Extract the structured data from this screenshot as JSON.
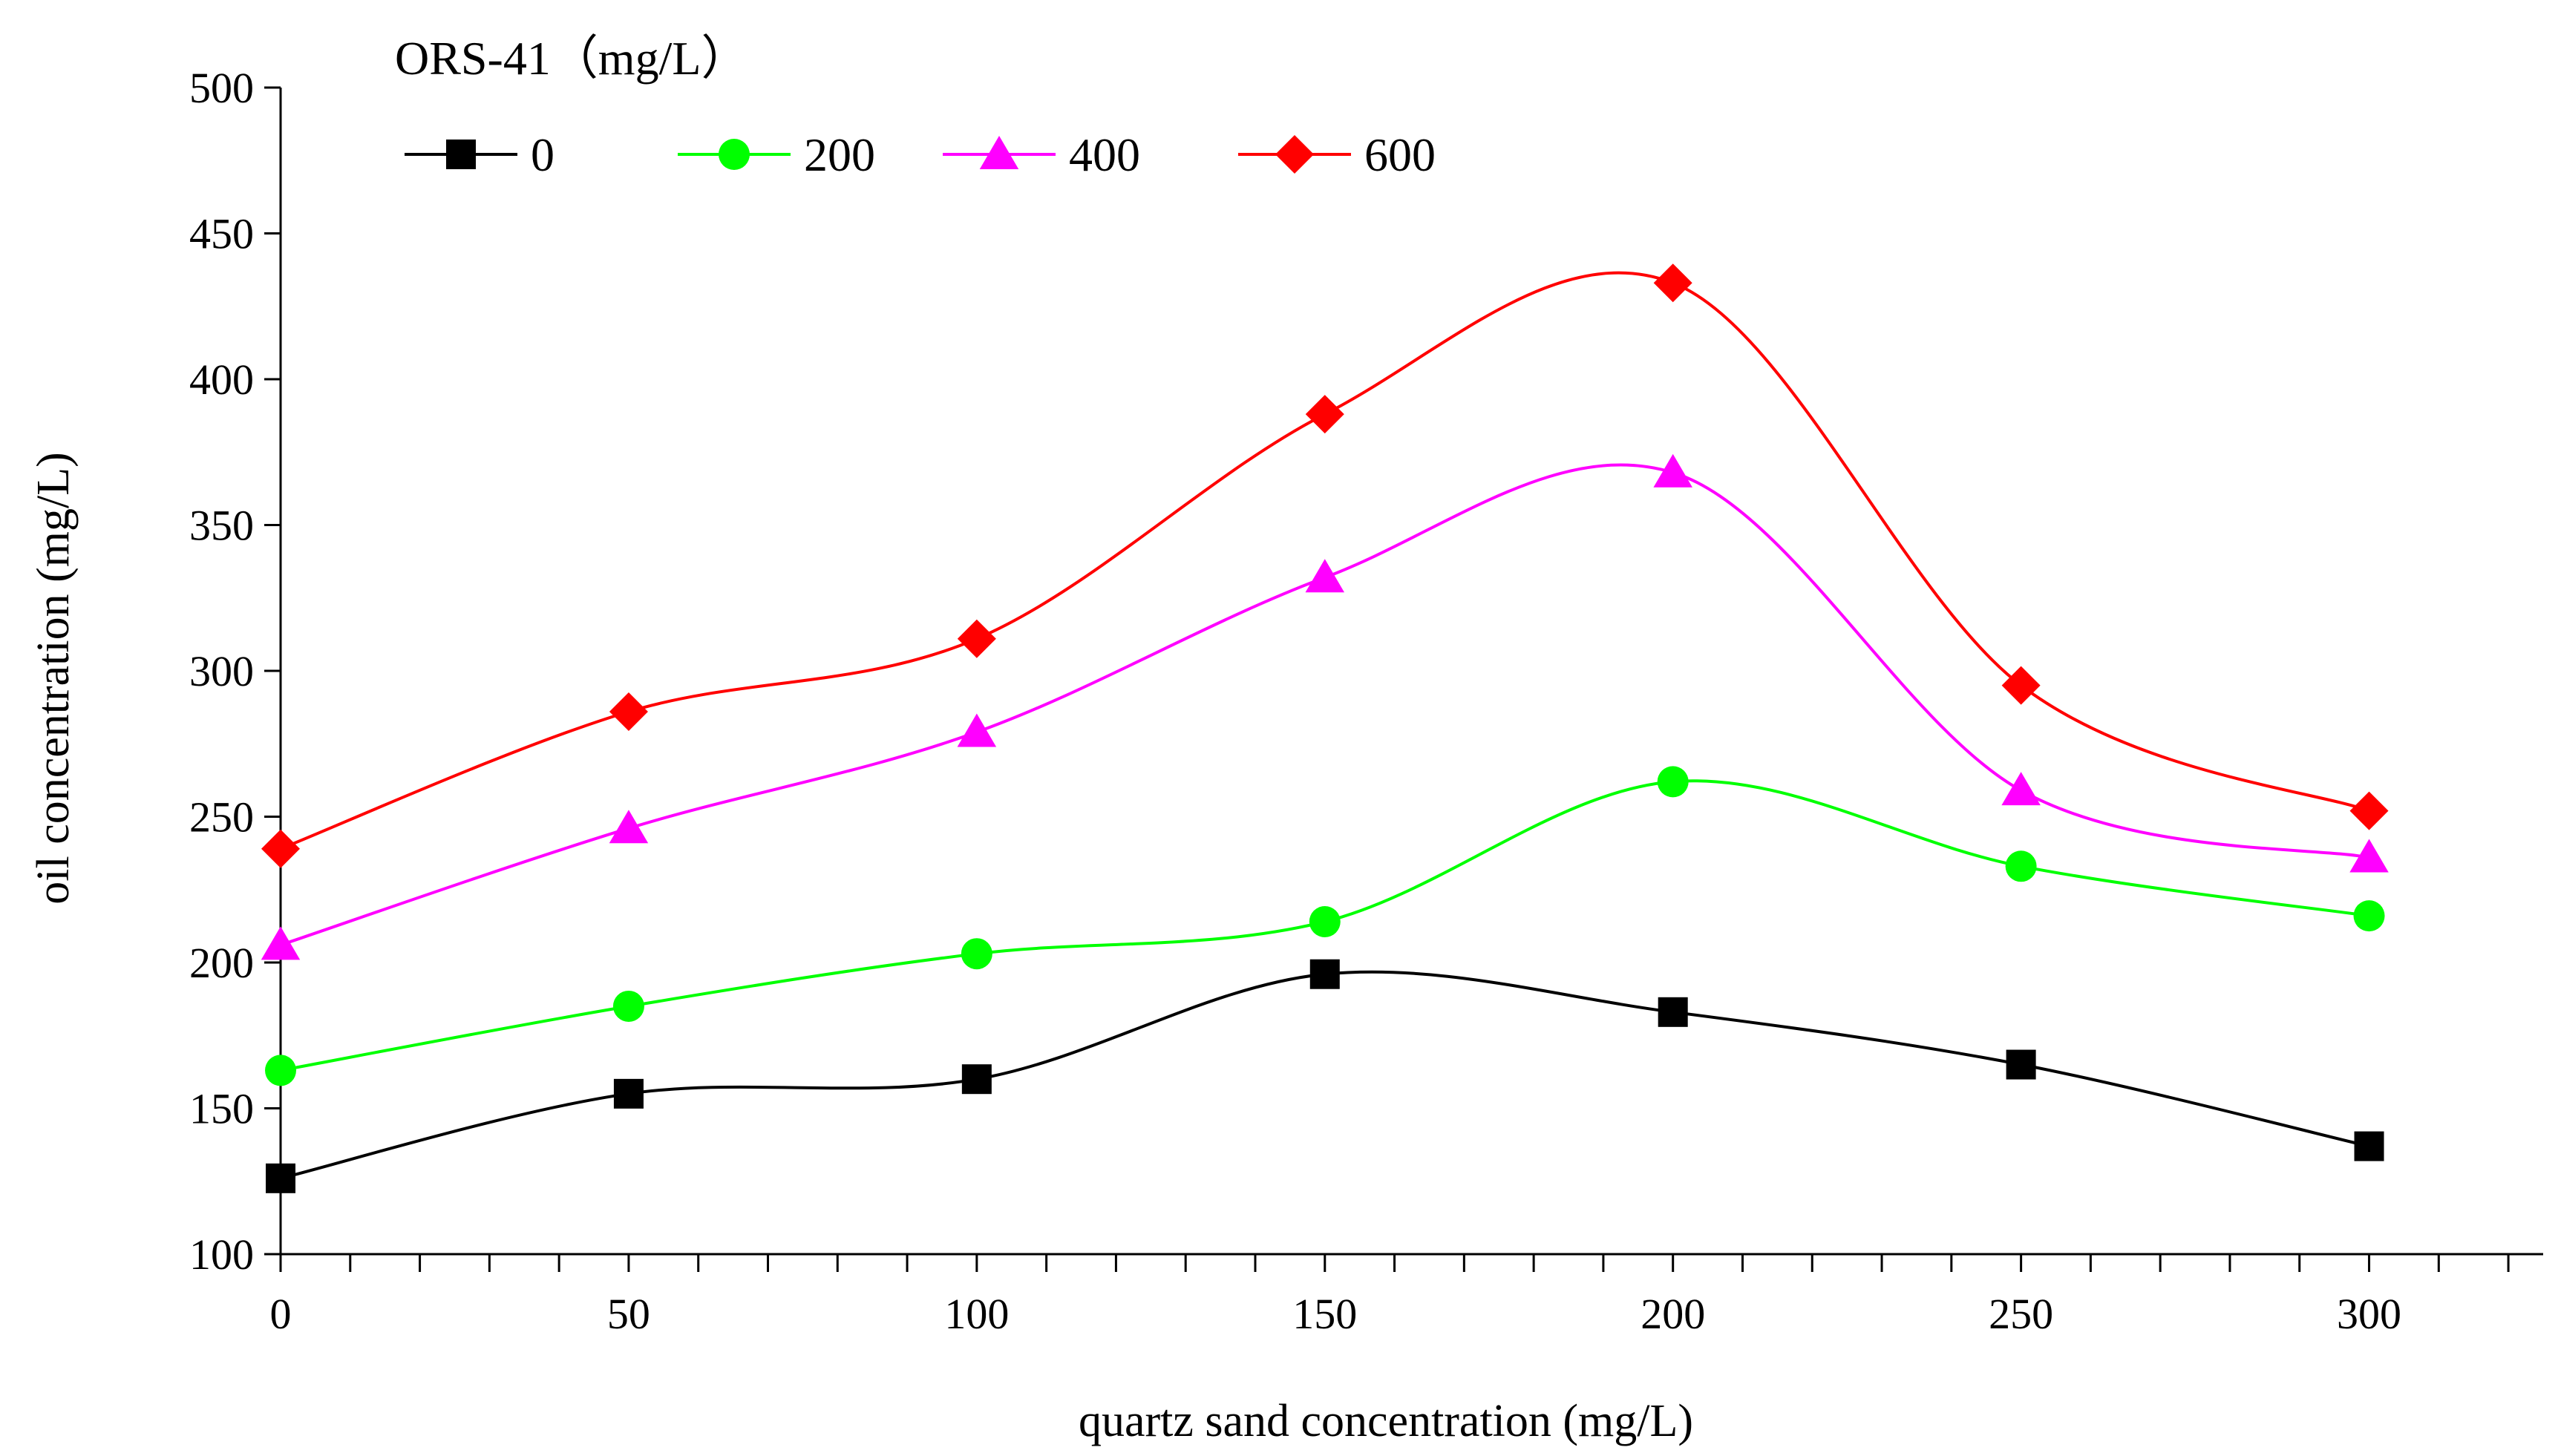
{
  "chart_data": {
    "type": "line",
    "title": "",
    "xlabel": "quartz sand concentration (mg/L)",
    "ylabel": "oil concentration (mg/L)",
    "x": [
      0,
      50,
      100,
      150,
      200,
      250,
      300
    ],
    "xlim": [
      0,
      325
    ],
    "ylim": [
      100,
      500
    ],
    "xticks": [
      0,
      50,
      100,
      150,
      200,
      250,
      300
    ],
    "yticks": [
      100,
      150,
      200,
      250,
      300,
      350,
      400,
      450,
      500
    ],
    "grid": false,
    "legend": {
      "title": "ORS-41（mg/L）",
      "placement": "top-left"
    },
    "series": [
      {
        "name": "0",
        "color": "#000000",
        "marker": "square",
        "values": [
          126,
          155,
          160,
          196,
          183,
          165,
          137
        ]
      },
      {
        "name": "200",
        "color": "#00ff00",
        "marker": "circle",
        "values": [
          163,
          185,
          203,
          214,
          262,
          233,
          216
        ]
      },
      {
        "name": "400",
        "color": "#ff00ff",
        "marker": "triangle",
        "values": [
          206,
          246,
          279,
          332,
          368,
          259,
          236
        ]
      },
      {
        "name": "600",
        "color": "#ff0000",
        "marker": "diamond",
        "values": [
          239,
          286,
          311,
          388,
          433,
          295,
          252
        ]
      }
    ]
  }
}
